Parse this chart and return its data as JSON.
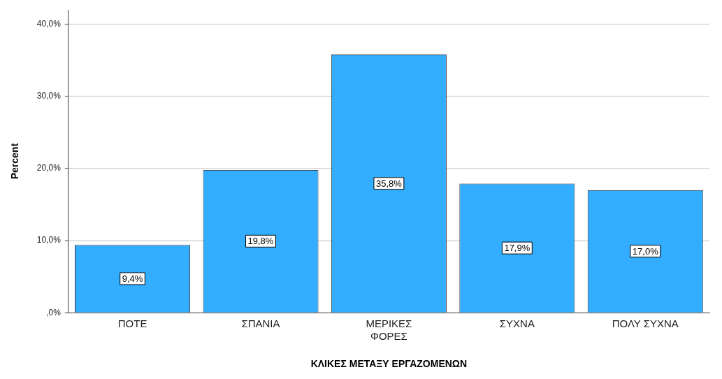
{
  "chart_data": {
    "type": "bar",
    "xlabel": "ΚΛΙΚΕΣ ΜΕΤΑΞΥ ΕΡΓΑΖΟΜΕΝΩΝ",
    "ylabel": "Percent",
    "categories": [
      "ΠΟΤΕ",
      "ΣΠΑΝΙΑ",
      "ΜΕΡΙΚΕΣ ΦΟΡΕΣ",
      "ΣΥΧΝΑ",
      "ΠΟΛΥ ΣΥΧΝΑ"
    ],
    "values": [
      9.4,
      19.8,
      35.8,
      17.9,
      17.0
    ],
    "value_labels": [
      "9,4%",
      "19,8%",
      "35,8%",
      "17,9%",
      "17,0%"
    ],
    "color": "#33adff",
    "ylim": [
      0,
      42
    ],
    "yticks": [
      {
        "value": 0,
        "label": ",0%"
      },
      {
        "value": 10,
        "label": "10,0%"
      },
      {
        "value": 20,
        "label": "20,0%"
      },
      {
        "value": 30,
        "label": "30,0%"
      },
      {
        "value": 40,
        "label": "40,0%"
      }
    ],
    "grid": "y",
    "legend": false
  }
}
